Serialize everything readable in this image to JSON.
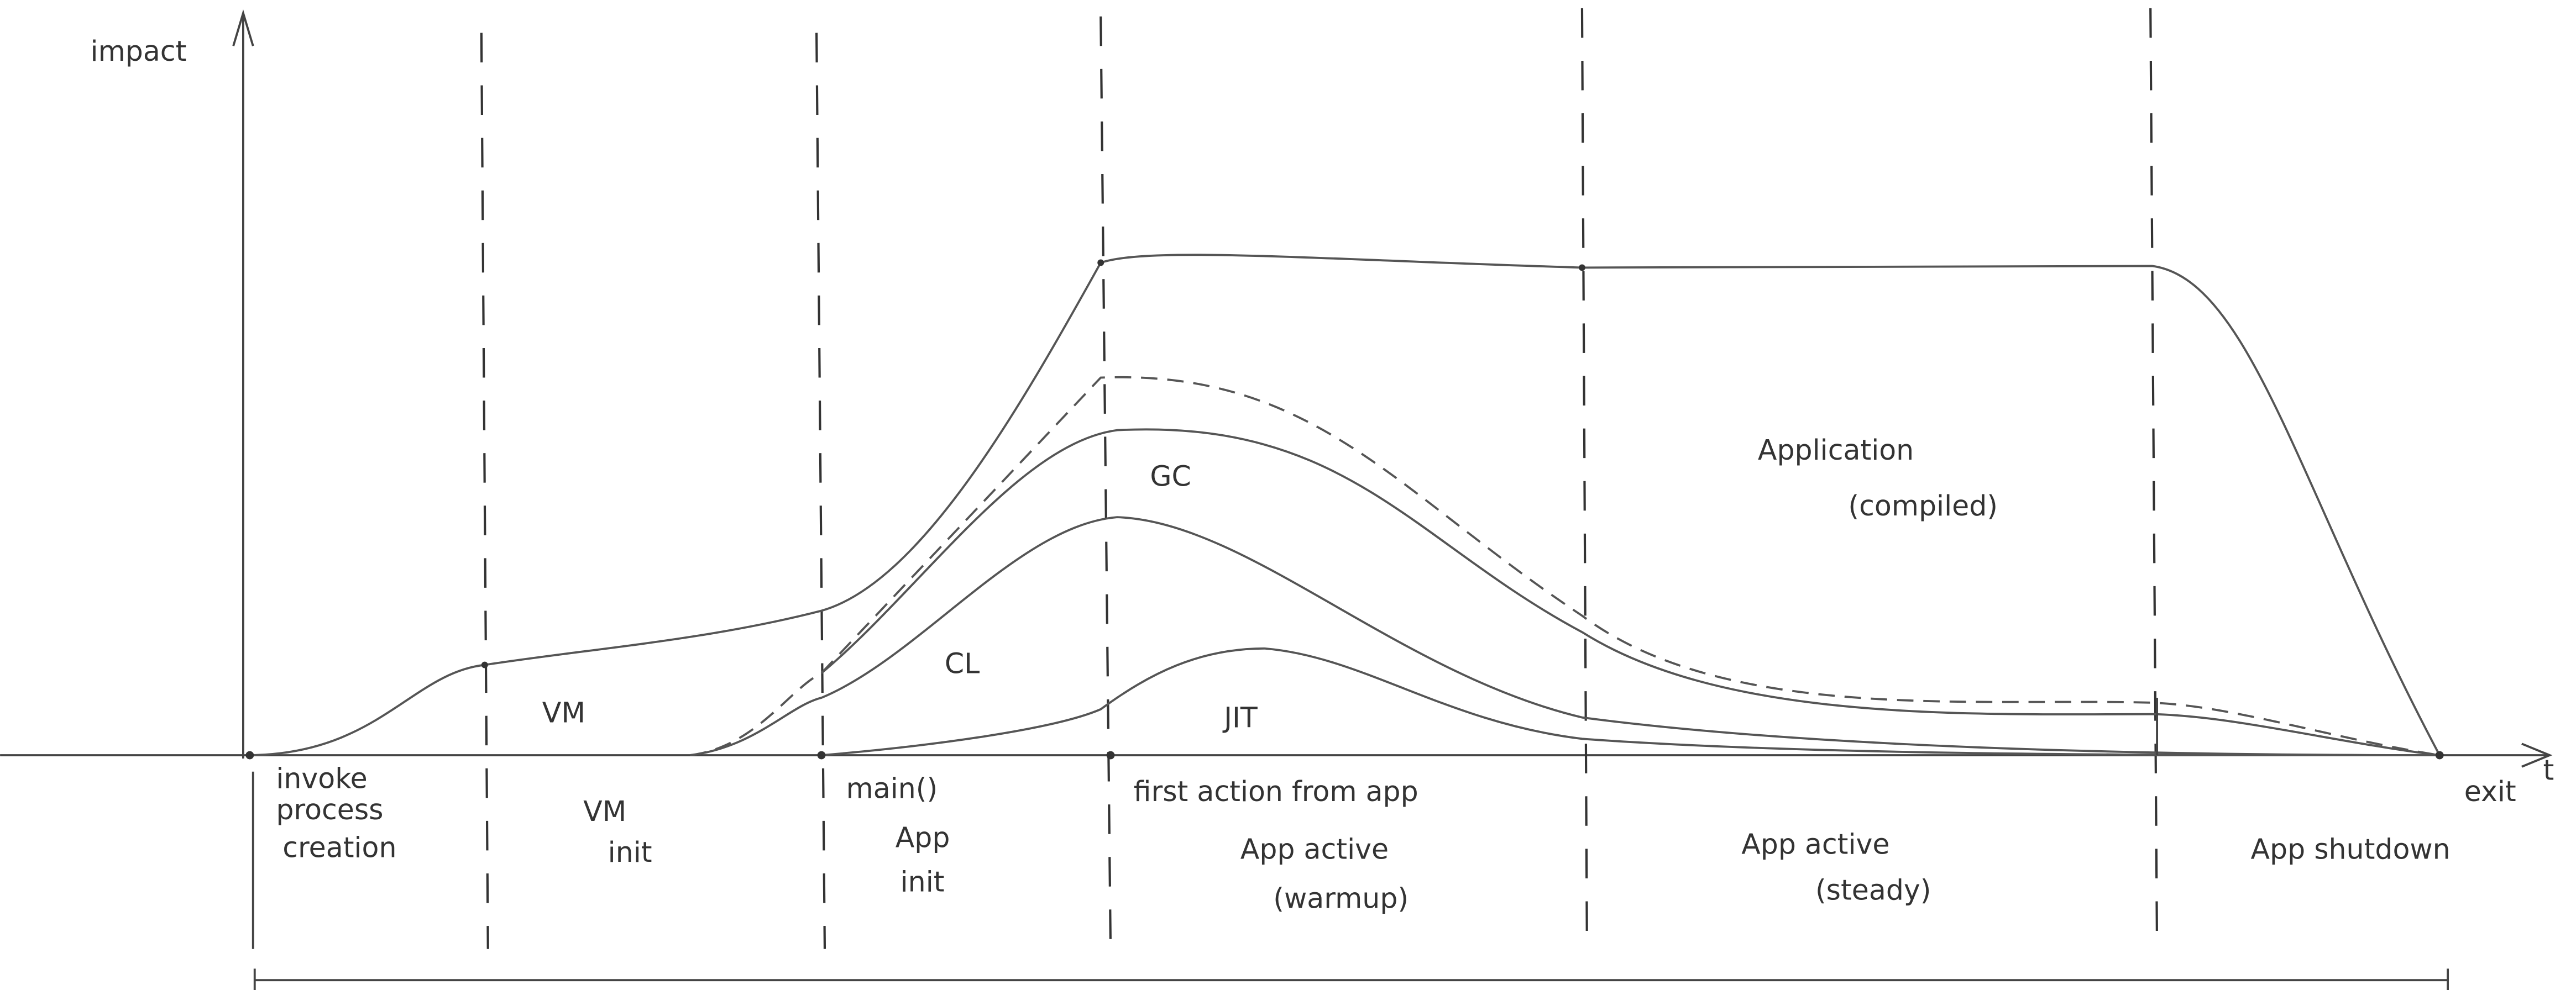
{
  "axis": {
    "y_label": "impact",
    "x_label": "t"
  },
  "areas": [
    [
      "VM"
    ],
    [
      "CL"
    ],
    [
      "GC"
    ],
    [
      "JIT"
    ],
    [
      "Application",
      "(compiled)"
    ]
  ],
  "annotations": [
    [
      "invoke",
      "process",
      "creation"
    ],
    [
      "main()"
    ],
    [
      "first action from app"
    ],
    [
      "exit"
    ]
  ],
  "phases": [
    [
      "VM",
      "init"
    ],
    [
      "App",
      "init"
    ],
    [
      "App active",
      "(warmup)"
    ],
    [
      "App active",
      "(steady)"
    ],
    [
      "App shutdown"
    ]
  ]
}
